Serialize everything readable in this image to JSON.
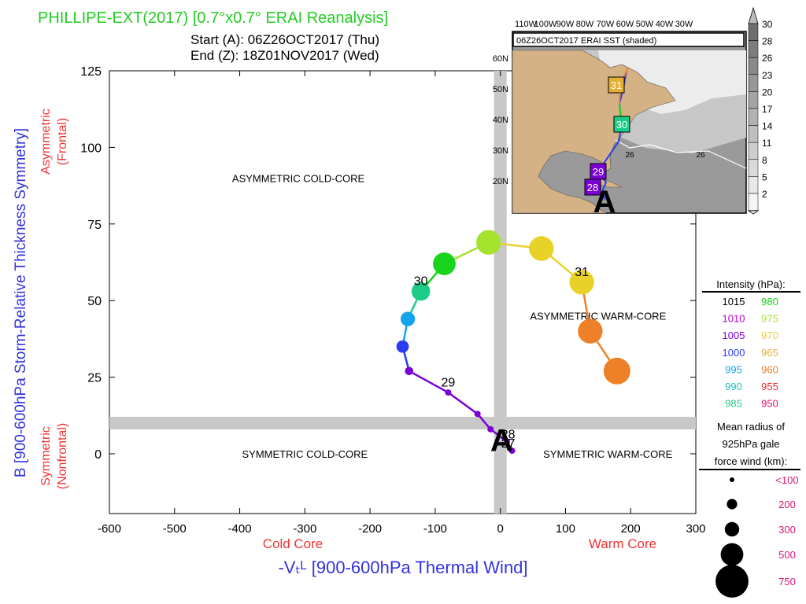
{
  "header": {
    "title": "PHILLIPE-EXT(2017) [0.7°x0.7° ERAI Reanalysis]",
    "title_color": "#22cc22",
    "start": "Start (A): 06Z26OCT2017 (Thu)",
    "end": "End (Z): 18Z01NOV2017 (Wed)"
  },
  "chart_data": {
    "type": "scatter",
    "title": "PHILLIPE-EXT(2017) [0.7°x0.7° ERAI Reanalysis]",
    "xlabel": "-Vₜᴸ [900-600hPa Thermal Wind]",
    "ylabel": "B [900-600hPa Storm-Relative Thickness Symmetry]",
    "xlim": [
      -600,
      300
    ],
    "ylim": [
      -20,
      125
    ],
    "x_ticks": [
      -600,
      -500,
      -400,
      -300,
      -200,
      -100,
      0,
      100,
      200,
      300
    ],
    "y_ticks": [
      0,
      25,
      50,
      75,
      100,
      125
    ],
    "x_tick_labels": [
      "-600",
      "-500",
      "-400",
      "-300",
      "-200",
      "-100",
      "0",
      "100",
      "200",
      "300"
    ],
    "y_tick_labels": [
      "0",
      "25",
      "50",
      "75",
      "100",
      "125"
    ],
    "x_side_labels": {
      "left": "Cold Core",
      "right": "Warm Core"
    },
    "y_side_labels": {
      "top": [
        "Asymmetric",
        "(Frontal)"
      ],
      "bottom": [
        "Symmetric",
        "(Nonfrontal)"
      ]
    },
    "quadrant_labels": [
      {
        "text": "ASYMMETRIC COLD-CORE",
        "x": -310,
        "y": 90
      },
      {
        "text": "ASYMMETRIC WARM-CORE",
        "x": 150,
        "y": 45
      },
      {
        "text": "SYMMETRIC COLD-CORE",
        "x": -300,
        "y": 0
      },
      {
        "text": "SYMMETRIC WARM-CORE",
        "x": 165,
        "y": 0
      }
    ],
    "shaded_bands": {
      "x_zero": 0,
      "y_threshold": 10
    },
    "track": [
      {
        "x": 18,
        "y": 1,
        "intensity_hpa": 1005,
        "radius_km": 100
      },
      {
        "x": 10,
        "y": 4,
        "intensity_hpa": 1005,
        "radius_km": 100
      },
      {
        "x": -15,
        "y": 8,
        "intensity_hpa": 1005,
        "radius_km": 100
      },
      {
        "x": -35,
        "y": 13,
        "intensity_hpa": 1005,
        "radius_km": 100
      },
      {
        "x": -80,
        "y": 20,
        "intensity_hpa": 1005,
        "radius_km": 100
      },
      {
        "x": -140,
        "y": 27,
        "intensity_hpa": 1005,
        "radius_km": 150
      },
      {
        "x": -150,
        "y": 35,
        "intensity_hpa": 1000,
        "radius_km": 250
      },
      {
        "x": -142,
        "y": 44,
        "intensity_hpa": 995,
        "radius_km": 300
      },
      {
        "x": -122,
        "y": 53,
        "intensity_hpa": 985,
        "radius_km": 400
      },
      {
        "x": -86,
        "y": 62,
        "intensity_hpa": 980,
        "radius_km": 500
      },
      {
        "x": -18,
        "y": 69,
        "intensity_hpa": 975,
        "radius_km": 550
      },
      {
        "x": 63,
        "y": 67,
        "intensity_hpa": 970,
        "radius_km": 550
      },
      {
        "x": 125,
        "y": 56,
        "intensity_hpa": 970,
        "radius_km": 550
      },
      {
        "x": 138,
        "y": 40,
        "intensity_hpa": 960,
        "radius_km": 550
      },
      {
        "x": 179,
        "y": 27,
        "intensity_hpa": 960,
        "radius_km": 600
      }
    ],
    "day_labels": [
      {
        "text": "28",
        "x": 12,
        "y": 5
      },
      {
        "text": "27",
        "x": 12,
        "y": 2
      },
      {
        "text": "29",
        "x": -80,
        "y": 22
      },
      {
        "text": "30",
        "x": -122,
        "y": 55
      },
      {
        "text": "31",
        "x": 125,
        "y": 58
      }
    ],
    "start_marker": {
      "text": "A",
      "x": 2,
      "y": 3
    },
    "intensity_legend": {
      "title": "Intensity (hPa):",
      "entries": [
        {
          "value": "1015",
          "color": "#000000"
        },
        {
          "value": "1010",
          "color": "#bb00cc"
        },
        {
          "value": "1005",
          "color": "#7a00d6"
        },
        {
          "value": "1000",
          "color": "#2a3cf0"
        },
        {
          "value": "995",
          "color": "#14a4ec"
        },
        {
          "value": "990",
          "color": "#16c4c0"
        },
        {
          "value": "985",
          "color": "#1ccc86"
        },
        {
          "value": "980",
          "color": "#18d41c"
        },
        {
          "value": "975",
          "color": "#a4e22c"
        },
        {
          "value": "970",
          "color": "#e8d22a"
        },
        {
          "value": "965",
          "color": "#e4b032"
        },
        {
          "value": "960",
          "color": "#ee8028"
        },
        {
          "value": "955",
          "color": "#e8282c"
        },
        {
          "value": "950",
          "color": "#dd1477"
        }
      ]
    },
    "radius_legend": {
      "title": [
        "Mean radius of",
        "925hPa gale",
        "force wind (km):"
      ],
      "entries": [
        {
          "label": "<100",
          "km": 100
        },
        {
          "label": "200",
          "km": 200
        },
        {
          "label": "300",
          "km": 300
        },
        {
          "label": "500",
          "km": 500
        },
        {
          "label": "750",
          "km": 750
        }
      ]
    }
  },
  "inset_map": {
    "title": "06Z26OCT2017 ERAI SST (shaded)",
    "lon_labels": [
      "110W",
      "100W",
      "90W",
      "80W",
      "70W",
      "60W",
      "50W",
      "40W",
      "30W"
    ],
    "lat_labels": [
      "60N",
      "50N",
      "40N",
      "30N",
      "20N"
    ],
    "sst_contour_labels": [
      "26",
      "26"
    ],
    "track_day_labels": [
      "31",
      "30",
      "29",
      "28"
    ],
    "start_marker": "A",
    "colorbar_labels": [
      "30",
      "28",
      "26",
      "23",
      "20",
      "17",
      "14",
      "11",
      "8",
      "5",
      "2"
    ]
  },
  "colors": {
    "title_green": "#22cc22",
    "axis_blue": "#3333dd",
    "side_red": "#ee3333",
    "band_gray": "#c8c8c8",
    "legend_magenta": "#dd1477",
    "land_tan": "#d5b286"
  }
}
